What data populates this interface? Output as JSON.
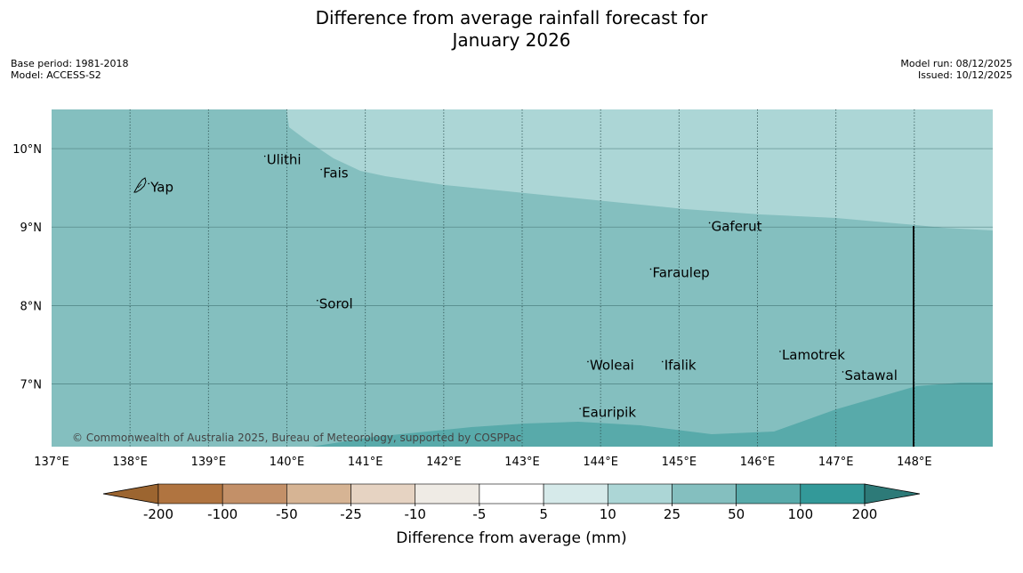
{
  "title": {
    "line1": "Difference from average rainfall forecast for",
    "line2": "January 2026"
  },
  "meta": {
    "base_period": "Base period: 1981-2018",
    "model": "Model: ACCESS-S2",
    "model_run": "Model run: 08/12/2025",
    "issued": "Issued: 10/12/2025"
  },
  "map": {
    "lon_range": [
      137,
      149
    ],
    "lat_range": [
      6.2,
      10.5
    ],
    "copyright": "© Commonwealth of Australia 2025, Bureau of Meteorology, supported by COSPPac",
    "lon_ticks": [
      {
        "value": 137,
        "label": "137°E"
      },
      {
        "value": 138,
        "label": "138°E"
      },
      {
        "value": 139,
        "label": "139°E"
      },
      {
        "value": 140,
        "label": "140°E"
      },
      {
        "value": 141,
        "label": "141°E"
      },
      {
        "value": 142,
        "label": "142°E"
      },
      {
        "value": 143,
        "label": "143°E"
      },
      {
        "value": 144,
        "label": "144°E"
      },
      {
        "value": 145,
        "label": "145°E"
      },
      {
        "value": 146,
        "label": "146°E"
      },
      {
        "value": 147,
        "label": "147°E"
      },
      {
        "value": 148,
        "label": "148°E"
      }
    ],
    "lat_ticks": [
      {
        "value": 10,
        "label": "10°N"
      },
      {
        "value": 9,
        "label": "9°N"
      },
      {
        "value": 8,
        "label": "8°N"
      },
      {
        "value": 7,
        "label": "7°N"
      }
    ],
    "places": [
      {
        "name": "Yap",
        "lon": 138.25,
        "lat": 9.52
      },
      {
        "name": "Ulithi",
        "lon": 139.73,
        "lat": 9.87
      },
      {
        "name": "Fais",
        "lon": 140.45,
        "lat": 9.7
      },
      {
        "name": "Gaferut",
        "lon": 145.4,
        "lat": 9.02
      },
      {
        "name": "Faraulep",
        "lon": 144.65,
        "lat": 8.43
      },
      {
        "name": "Sorol",
        "lon": 140.4,
        "lat": 8.03
      },
      {
        "name": "Woleai",
        "lon": 143.85,
        "lat": 7.25
      },
      {
        "name": "Ifalik",
        "lon": 144.8,
        "lat": 7.25
      },
      {
        "name": "Lamotrek",
        "lon": 146.3,
        "lat": 7.38
      },
      {
        "name": "Satawal",
        "lon": 147.1,
        "lat": 7.12
      },
      {
        "name": "Eauripik",
        "lon": 143.75,
        "lat": 6.65
      }
    ],
    "zones": [
      {
        "category": "25 to 50",
        "color": "#84bfbf"
      },
      {
        "category": "10 to 25",
        "color": "#acd6d6"
      },
      {
        "category": "50 to 100",
        "color": "#58aaaa"
      }
    ],
    "boundary_line_lon": 148.0
  },
  "colorbar": {
    "colors": [
      "#9c6530",
      "#b07440",
      "#c39068",
      "#d6b494",
      "#e6d3c2",
      "#efebe5",
      "#ffffff",
      "#d6eaea",
      "#acd6d6",
      "#84bfbf",
      "#58aaaa",
      "#339999",
      "#2d7a78"
    ],
    "labels": [
      "-200",
      "-100",
      "-50",
      "-25",
      "-10",
      "-5",
      "5",
      "10",
      "25",
      "50",
      "100",
      "200"
    ],
    "title": "Difference from average (mm)"
  }
}
